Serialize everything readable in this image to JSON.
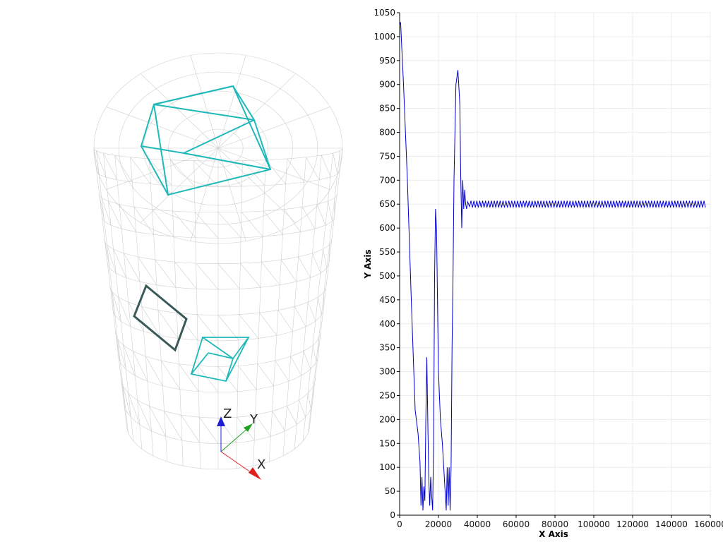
{
  "render_view": {
    "orientation_axes": {
      "x_label": "X",
      "y_label": "Y",
      "z_label": "Z"
    },
    "colors": {
      "mesh": "#cfcfcf",
      "box": "#1fb8b8",
      "box_dark": "#3a5a5a",
      "x_axis": "#e02020",
      "y_axis": "#20a020",
      "z_axis": "#2020d0"
    }
  },
  "chart_data": {
    "type": "line",
    "xlabel": "X Axis",
    "ylabel": "Y Axis",
    "xlim": [
      0,
      160000
    ],
    "ylim": [
      0,
      1050
    ],
    "grid": true,
    "x_ticks": [
      0,
      20000,
      40000,
      60000,
      80000,
      100000,
      120000,
      140000,
      160000
    ],
    "y_ticks": [
      0,
      50,
      100,
      150,
      200,
      250,
      300,
      350,
      400,
      450,
      500,
      550,
      600,
      650,
      700,
      750,
      800,
      850,
      900,
      950,
      1000,
      1050
    ],
    "series": [
      {
        "color": "#0000cc",
        "x": [
          0,
          500,
          2000,
          4000,
          6000,
          8000,
          9500,
          10500,
          11000,
          11500,
          12000,
          12500,
          13000,
          13500,
          14000,
          14500,
          15000,
          15500,
          16000,
          16500,
          17000,
          17500,
          18000,
          18500,
          19000,
          19500,
          20000,
          21000,
          22000,
          23000,
          24000,
          24500,
          25000,
          25500,
          26000,
          26500,
          27000,
          27500,
          28000,
          29000,
          30000,
          31000,
          31500,
          32000,
          32500,
          33000,
          33500,
          34000,
          34500,
          35000,
          36000
        ],
        "y": [
          1025,
          1030,
          900,
          700,
          450,
          220,
          170,
          110,
          20,
          80,
          10,
          60,
          30,
          200,
          330,
          200,
          80,
          20,
          80,
          40,
          10,
          150,
          500,
          640,
          600,
          450,
          300,
          200,
          150,
          80,
          10,
          100,
          20,
          100,
          10,
          100,
          350,
          500,
          700,
          900,
          930,
          860,
          700,
          600,
          700,
          640,
          680,
          650,
          640,
          655,
          645
        ],
        "steady_state": {
          "x_start": 36000,
          "x_end": 158000,
          "mean": 650,
          "amplitude": 7,
          "period": 1500
        }
      }
    ]
  }
}
